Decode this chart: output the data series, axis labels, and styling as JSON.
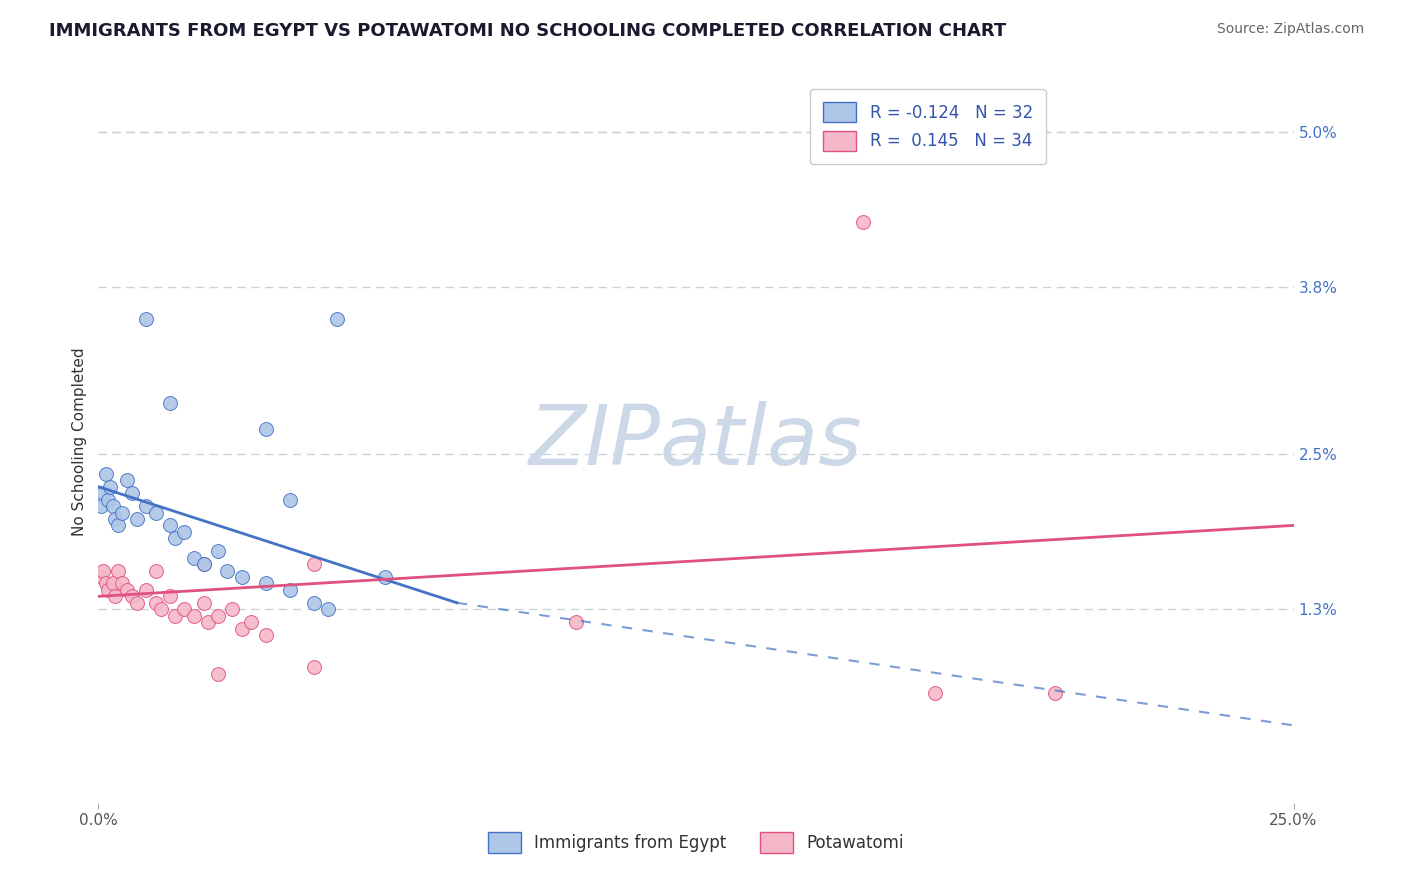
{
  "title": "IMMIGRANTS FROM EGYPT VS POTAWATOMI NO SCHOOLING COMPLETED CORRELATION CHART",
  "source_text": "Source: ZipAtlas.com",
  "ylabel": "No Schooling Completed",
  "xlim": [
    0.0,
    25.0
  ],
  "ylim": [
    -0.2,
    5.4
  ],
  "yticks_right": [
    1.3,
    2.5,
    3.8,
    5.0
  ],
  "watermark": "ZIPatlas",
  "blue_scatter": [
    [
      0.05,
      2.1
    ],
    [
      0.1,
      2.2
    ],
    [
      0.15,
      2.35
    ],
    [
      0.2,
      2.15
    ],
    [
      0.25,
      2.25
    ],
    [
      0.3,
      2.1
    ],
    [
      0.35,
      2.0
    ],
    [
      0.4,
      1.95
    ],
    [
      0.5,
      2.05
    ],
    [
      0.6,
      2.3
    ],
    [
      0.7,
      2.2
    ],
    [
      0.8,
      2.0
    ],
    [
      1.0,
      2.1
    ],
    [
      1.2,
      2.05
    ],
    [
      1.5,
      1.95
    ],
    [
      1.6,
      1.85
    ],
    [
      1.8,
      1.9
    ],
    [
      2.0,
      1.7
    ],
    [
      2.2,
      1.65
    ],
    [
      2.5,
      1.75
    ],
    [
      2.7,
      1.6
    ],
    [
      3.0,
      1.55
    ],
    [
      3.5,
      1.5
    ],
    [
      4.0,
      1.45
    ],
    [
      4.5,
      1.35
    ],
    [
      1.5,
      2.9
    ],
    [
      1.0,
      3.55
    ],
    [
      3.5,
      2.7
    ],
    [
      5.0,
      3.55
    ],
    [
      4.0,
      2.15
    ],
    [
      4.8,
      1.3
    ],
    [
      6.0,
      1.55
    ]
  ],
  "pink_scatter": [
    [
      0.05,
      1.55
    ],
    [
      0.1,
      1.6
    ],
    [
      0.15,
      1.5
    ],
    [
      0.2,
      1.45
    ],
    [
      0.3,
      1.5
    ],
    [
      0.35,
      1.4
    ],
    [
      0.4,
      1.6
    ],
    [
      0.5,
      1.5
    ],
    [
      0.6,
      1.45
    ],
    [
      0.7,
      1.4
    ],
    [
      0.8,
      1.35
    ],
    [
      1.0,
      1.45
    ],
    [
      1.2,
      1.35
    ],
    [
      1.3,
      1.3
    ],
    [
      1.5,
      1.4
    ],
    [
      1.6,
      1.25
    ],
    [
      1.8,
      1.3
    ],
    [
      2.0,
      1.25
    ],
    [
      2.2,
      1.35
    ],
    [
      2.3,
      1.2
    ],
    [
      2.5,
      1.25
    ],
    [
      2.8,
      1.3
    ],
    [
      3.0,
      1.15
    ],
    [
      3.2,
      1.2
    ],
    [
      3.5,
      1.1
    ],
    [
      1.2,
      1.6
    ],
    [
      2.2,
      1.65
    ],
    [
      4.5,
      1.65
    ],
    [
      10.0,
      1.2
    ],
    [
      16.0,
      4.3
    ],
    [
      20.0,
      0.65
    ],
    [
      17.5,
      0.65
    ],
    [
      2.5,
      0.8
    ],
    [
      4.5,
      0.85
    ]
  ],
  "blue_line": [
    [
      0.0,
      2.25
    ],
    [
      7.5,
      1.35
    ]
  ],
  "blue_dashed_line": [
    [
      7.5,
      1.35
    ],
    [
      25.0,
      0.4
    ]
  ],
  "pink_line": [
    [
      0.0,
      1.4
    ],
    [
      25.0,
      1.95
    ]
  ],
  "top_dashed_line_y": 5.0,
  "title_fontsize": 13,
  "axis_label_fontsize": 11,
  "tick_fontsize": 11,
  "legend_fontsize": 12,
  "watermark_fontsize": 60,
  "watermark_color": "#ccd8e8",
  "background_color": "#ffffff",
  "scatter_size": 100,
  "blue_color": "#aec6e8",
  "pink_color": "#f4b8c8",
  "blue_line_color": "#4472c4",
  "pink_line_color": "#e05080",
  "dashed_color": "#b0bec8",
  "grid_color": "#c8d4dc"
}
